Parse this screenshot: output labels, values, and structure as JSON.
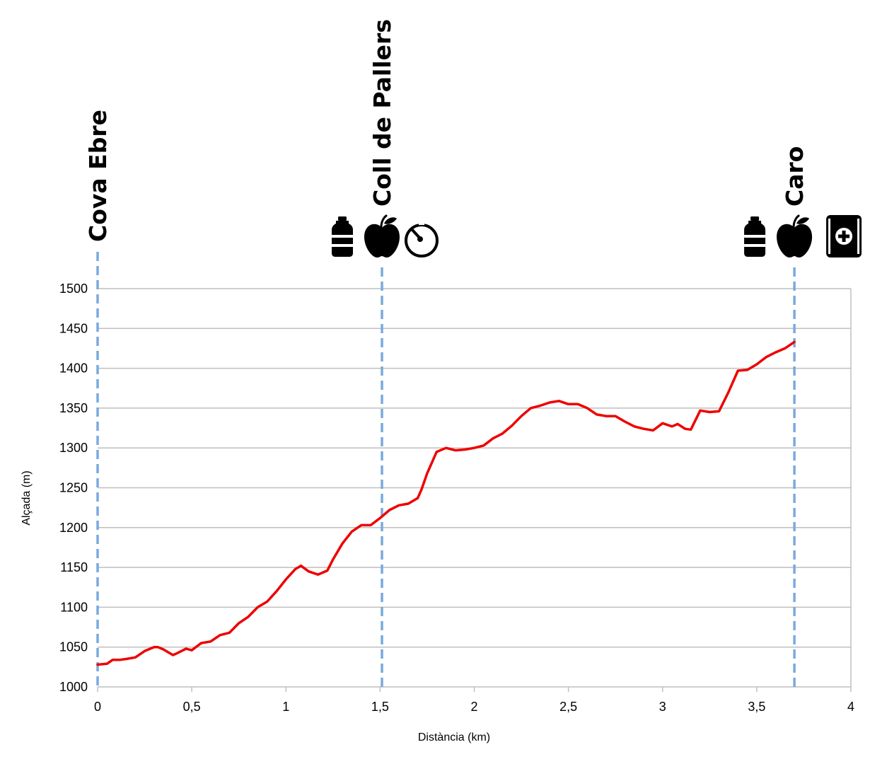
{
  "chart_data": {
    "type": "line",
    "xlabel": "Distància (km)",
    "ylabel": "Alçada (m)",
    "xlim": [
      0,
      4
    ],
    "ylim": [
      1000,
      1500
    ],
    "xticks": [
      0,
      0.5,
      1,
      1.5,
      2,
      2.5,
      3,
      3.5,
      4
    ],
    "xtick_labels": [
      "0",
      "0,5",
      "1",
      "1,5",
      "2",
      "2,5",
      "3",
      "3,5",
      "4"
    ],
    "yticks": [
      1000,
      1050,
      1100,
      1150,
      1200,
      1250,
      1300,
      1350,
      1400,
      1450,
      1500
    ],
    "ytick_labels": [
      "1000",
      "1050",
      "1100",
      "1150",
      "1200",
      "1250",
      "1300",
      "1350",
      "1400",
      "1450",
      "1500"
    ],
    "grid": "horizontal",
    "series": [
      {
        "color": "#ee0000",
        "x": [
          0,
          0.05,
          0.08,
          0.12,
          0.15,
          0.2,
          0.25,
          0.3,
          0.32,
          0.35,
          0.4,
          0.42,
          0.47,
          0.5,
          0.55,
          0.6,
          0.65,
          0.7,
          0.75,
          0.8,
          0.85,
          0.9,
          0.95,
          1.0,
          1.05,
          1.08,
          1.12,
          1.17,
          1.22,
          1.25,
          1.3,
          1.35,
          1.4,
          1.45,
          1.5,
          1.55,
          1.6,
          1.65,
          1.7,
          1.72,
          1.75,
          1.8,
          1.85,
          1.9,
          1.95,
          2.0,
          2.05,
          2.1,
          2.15,
          2.2,
          2.25,
          2.3,
          2.35,
          2.4,
          2.45,
          2.5,
          2.55,
          2.6,
          2.65,
          2.7,
          2.75,
          2.8,
          2.85,
          2.9,
          2.95,
          3.0,
          3.05,
          3.08,
          3.12,
          3.15,
          3.2,
          3.25,
          3.3,
          3.35,
          3.4,
          3.45,
          3.5,
          3.55,
          3.6,
          3.65,
          3.7
        ],
        "y": [
          1028,
          1029,
          1034,
          1034,
          1035,
          1037,
          1045,
          1050,
          1050,
          1047,
          1040,
          1042,
          1048,
          1046,
          1055,
          1057,
          1065,
          1068,
          1080,
          1088,
          1100,
          1107,
          1120,
          1135,
          1148,
          1152,
          1145,
          1141,
          1146,
          1160,
          1180,
          1195,
          1203,
          1203,
          1212,
          1222,
          1228,
          1230,
          1237,
          1248,
          1268,
          1295,
          1300,
          1297,
          1298,
          1300,
          1303,
          1312,
          1318,
          1328,
          1340,
          1350,
          1353,
          1357,
          1359,
          1355,
          1355,
          1350,
          1342,
          1340,
          1340,
          1333,
          1327,
          1324,
          1322,
          1331,
          1327,
          1330,
          1324,
          1323,
          1347,
          1345,
          1346,
          1370,
          1397,
          1398,
          1405,
          1414,
          1420,
          1425,
          1433
        ]
      }
    ],
    "markers": [
      {
        "x": 0,
        "label": "Cova Ebre",
        "icons": []
      },
      {
        "x": 1.51,
        "label": "Coll de Pallers",
        "icons": [
          "water-bottle-icon",
          "apple-icon",
          "stopwatch-icon"
        ]
      },
      {
        "x": 3.7,
        "label": "Caro",
        "icons": [
          "water-bottle-icon",
          "apple-icon",
          "first-aid-kit-icon"
        ]
      }
    ],
    "marker_line_color": "#7aa9dd"
  }
}
